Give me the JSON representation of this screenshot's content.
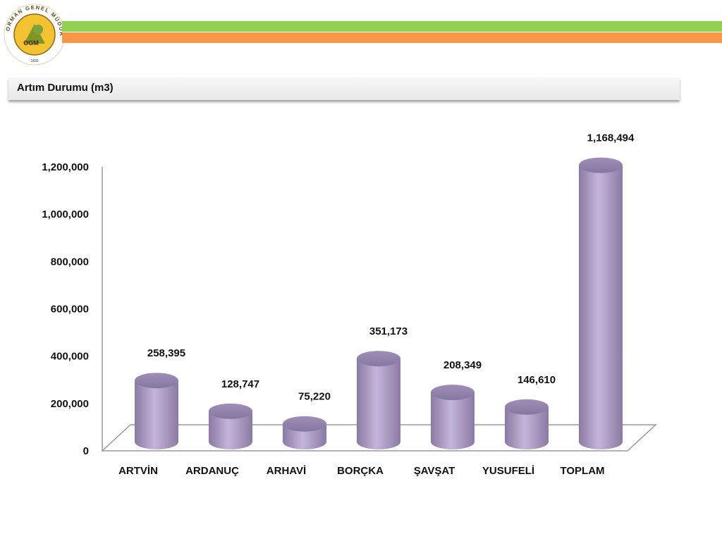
{
  "header": {
    "logo_text": "ORMAN GENEL MÜDÜRLÜĞÜ",
    "logo_abbr": "OGM",
    "logo_year": "1839",
    "stripe_green": "#92d050",
    "stripe_orange": "#f79646"
  },
  "title": "Artım Durumu (m3)",
  "chart_data": {
    "type": "bar",
    "title": "",
    "xlabel": "",
    "ylabel": "",
    "categories": [
      "ARTVİN",
      "ARDANUÇ",
      "ARHAVİ",
      "BORÇKA",
      "ŞAVŞAT",
      "YUSUFELİ",
      "TOPLAM"
    ],
    "values": [
      258395,
      128747,
      75220,
      351173,
      208349,
      146610,
      1168494
    ],
    "value_labels": [
      "258,395",
      "128,747",
      "75,220",
      "351,173",
      "208,349",
      "146,610",
      "1,168,494"
    ],
    "ylim": [
      0,
      1200000
    ],
    "yticks": [
      0,
      200000,
      400000,
      600000,
      800000,
      1000000,
      1200000
    ],
    "ytick_labels": [
      "0",
      "200,000",
      "400,000",
      "600,000",
      "800,000",
      "1,000,000",
      "1,200,000"
    ],
    "bar_style": "3d-cylinder",
    "bar_color": "#b3a2c7",
    "grid": false,
    "legend": "none"
  }
}
